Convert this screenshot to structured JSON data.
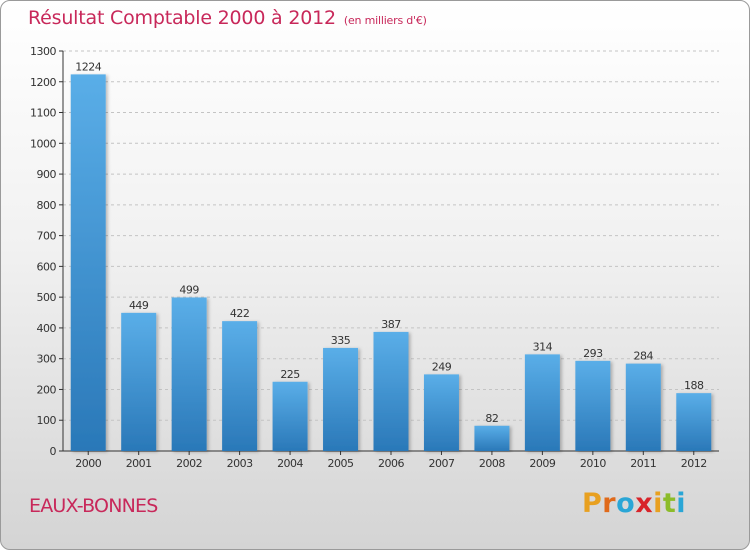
{
  "chart_data": {
    "type": "bar",
    "title": "Résultat Comptable 2000 à 2012",
    "unit_label": "(en milliers d'€)",
    "categories": [
      "2000",
      "2001",
      "2002",
      "2003",
      "2004",
      "2005",
      "2006",
      "2007",
      "2008",
      "2009",
      "2010",
      "2011",
      "2012"
    ],
    "values": [
      1224,
      449,
      499,
      422,
      225,
      335,
      387,
      249,
      82,
      314,
      293,
      284,
      188
    ],
    "ylim": [
      0,
      1300
    ],
    "yticks": [
      0,
      100,
      200,
      300,
      400,
      500,
      600,
      700,
      800,
      900,
      1000,
      1100,
      1200,
      1300
    ],
    "xlabel": "",
    "ylabel": "",
    "bar_color_top": "#5aaee8",
    "bar_color_bottom": "#2a78b8"
  },
  "place_name": "EAUX-BONNES",
  "logo": {
    "text": "Proxiti",
    "letter_colors": [
      "#e8a020",
      "#e06a1a",
      "#2aa6d6",
      "#d8242a",
      "#e8a020",
      "#8cbc2a",
      "#2aa6d6"
    ]
  },
  "colors": {
    "accent": "#c8285a"
  }
}
